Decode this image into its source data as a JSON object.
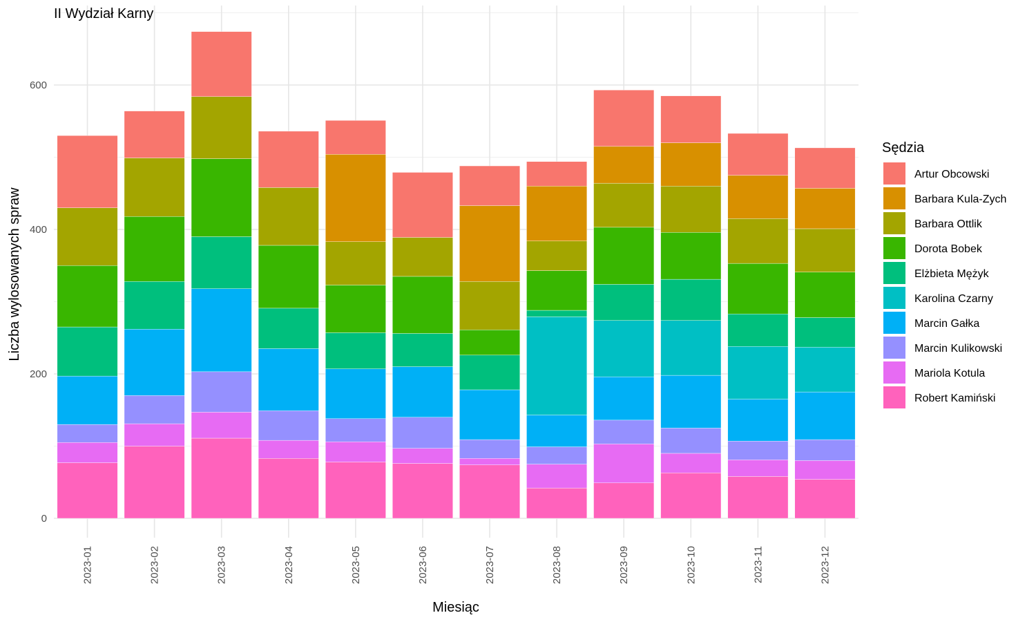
{
  "chart_data": {
    "type": "bar",
    "stacked": true,
    "title": "II Wydział Karny",
    "xlabel": "Miesiąc",
    "ylabel": "Liczba wylosowanych spraw",
    "ylim": [
      0,
      700
    ],
    "yticks": [
      0,
      200,
      400,
      600
    ],
    "grid": true,
    "legend_title": "Sędzia",
    "legend_position": "right",
    "categories": [
      "2023-01",
      "2023-02",
      "2023-03",
      "2023-04",
      "2023-05",
      "2023-06",
      "2023-07",
      "2023-08",
      "2023-09",
      "2023-10",
      "2023-11",
      "2023-12"
    ],
    "series": [
      {
        "name": "Artur Obcowski",
        "color": "#F8766D",
        "values": [
          100,
          65,
          90,
          78,
          47,
          90,
          55,
          34,
          78,
          65,
          58,
          56
        ]
      },
      {
        "name": "Barbara Kula-Zych",
        "color": "#D89000",
        "values": [
          0,
          0,
          0,
          0,
          121,
          0,
          105,
          76,
          51,
          60,
          60,
          56
        ]
      },
      {
        "name": "Barbara Ottlik",
        "color": "#A3A500",
        "values": [
          80,
          81,
          86,
          80,
          60,
          54,
          67,
          41,
          61,
          64,
          62,
          60
        ]
      },
      {
        "name": "Dorota Bobek",
        "color": "#39B600",
        "values": [
          85,
          90,
          108,
          87,
          66,
          79,
          35,
          55,
          79,
          65,
          70,
          63
        ]
      },
      {
        "name": "Elżbieta Mężyk",
        "color": "#00BF7D",
        "values": [
          68,
          66,
          72,
          56,
          50,
          46,
          48,
          9,
          50,
          57,
          45,
          41
        ]
      },
      {
        "name": "Karolina Czarny",
        "color": "#00BFC4",
        "values": [
          0,
          0,
          0,
          0,
          0,
          0,
          0,
          136,
          78,
          76,
          73,
          62
        ]
      },
      {
        "name": "Marcin Gałka",
        "color": "#00B0F6",
        "values": [
          67,
          92,
          115,
          86,
          69,
          70,
          69,
          44,
          60,
          73,
          58,
          66
        ]
      },
      {
        "name": "Marcin Kulikowski",
        "color": "#9590FF",
        "values": [
          25,
          39,
          56,
          41,
          32,
          43,
          26,
          24,
          33,
          35,
          26,
          29
        ]
      },
      {
        "name": "Mariola Kotula",
        "color": "#E76BF3",
        "values": [
          28,
          31,
          36,
          25,
          28,
          21,
          9,
          33,
          54,
          27,
          23,
          26
        ]
      },
      {
        "name": "Robert Kamiński",
        "color": "#FF62BC",
        "values": [
          77,
          100,
          111,
          83,
          78,
          76,
          74,
          42,
          49,
          63,
          58,
          54
        ]
      }
    ]
  }
}
